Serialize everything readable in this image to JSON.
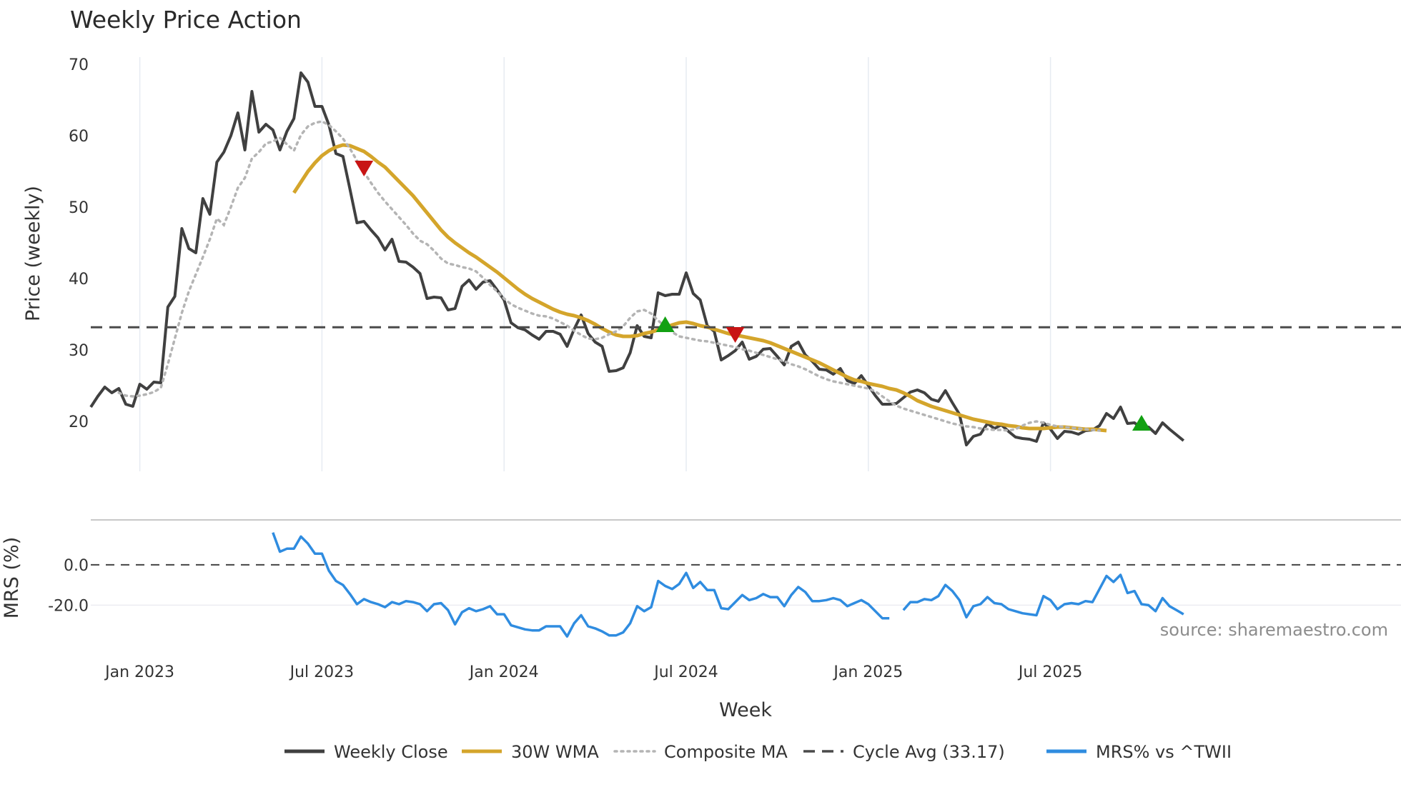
{
  "chart_data": {
    "type": "line",
    "title": "Weekly Price Action",
    "xlabel": "Week",
    "ylabel": "Price (weekly)",
    "ylabel2": "MRS (%)",
    "source": "source: sharemaestro.com",
    "x_ticks": [
      {
        "label": "Jan 2023",
        "week": 8
      },
      {
        "label": "Jul 2023",
        "week": 34
      },
      {
        "label": "Jan 2024",
        "week": 60
      },
      {
        "label": "Jul 2024",
        "week": 86
      },
      {
        "label": "Jan 2025",
        "week": 112
      },
      {
        "label": "Jul 2025",
        "week": 138
      }
    ],
    "price_ylim": [
      13,
      71
    ],
    "price_yticks": [
      "20",
      "30",
      "40",
      "50",
      "60",
      "70"
    ],
    "mrs_ylim": [
      -45,
      18
    ],
    "mrs_yticks": [
      "0.0",
      "-20.0"
    ],
    "series": [
      {
        "name": "Weekly Close",
        "color": "#404040",
        "start_week": 1,
        "values": [
          22.0,
          23.5,
          24.8,
          24.0,
          24.6,
          22.4,
          22.1,
          25.2,
          24.5,
          25.5,
          25.4,
          36.0,
          37.5,
          47.0,
          44.2,
          43.6,
          51.2,
          49.0,
          56.3,
          57.7,
          60.0,
          63.2,
          58.0,
          66.2,
          60.5,
          61.6,
          60.8,
          58.0,
          60.6,
          62.4,
          68.8,
          67.5,
          64.1,
          64.1,
          61.5,
          57.5,
          57.1,
          52.5,
          47.8,
          48.0,
          46.8,
          45.7,
          44.0,
          45.5,
          42.4,
          42.3,
          41.6,
          40.7,
          37.2,
          37.4,
          37.3,
          35.6,
          35.8,
          38.9,
          39.8,
          38.5,
          39.5,
          39.7,
          38.4,
          37.0,
          33.8,
          33.1,
          32.8,
          32.1,
          31.5,
          32.6,
          32.6,
          32.2,
          30.5,
          32.9,
          34.9,
          32.3,
          31.1,
          30.5,
          27.0,
          27.1,
          27.5,
          29.6,
          33.4,
          31.9,
          31.7,
          38.0,
          37.6,
          37.8,
          37.8,
          40.8,
          37.9,
          37.0,
          33.4,
          32.6,
          28.6,
          29.2,
          29.9,
          31.1,
          28.7,
          29.1,
          30.1,
          30.2,
          29.1,
          27.9,
          30.5,
          31.1,
          29.3,
          28.4,
          27.3,
          27.2,
          26.6,
          27.4,
          25.7,
          25.3,
          26.4,
          25.0,
          23.6,
          22.4,
          22.4,
          22.5,
          23.3,
          24.1,
          24.4,
          24.0,
          23.1,
          22.8,
          24.3,
          22.6,
          21.0,
          16.7,
          17.9,
          18.2,
          19.7,
          19.0,
          19.5,
          18.6,
          17.8,
          17.6,
          17.5,
          17.2,
          19.8,
          18.9,
          17.6,
          18.6,
          18.5,
          18.2,
          18.7,
          18.8,
          19.4,
          21.1,
          20.4,
          22.0,
          19.7,
          19.8,
          19.0,
          19.2,
          18.3,
          19.8,
          18.9,
          18.1,
          17.3
        ]
      },
      {
        "name": "30W WMA",
        "color": "#d4a52b",
        "start_week": 30,
        "values": [
          52.0,
          53.5,
          55.0,
          56.2,
          57.2,
          57.9,
          58.4,
          58.7,
          58.6,
          58.2,
          57.8,
          57.1,
          56.3,
          55.6,
          54.6,
          53.6,
          52.6,
          51.6,
          50.4,
          49.2,
          48.0,
          46.8,
          45.8,
          45.0,
          44.3,
          43.6,
          43.0,
          42.3,
          41.6,
          40.9,
          40.1,
          39.3,
          38.5,
          37.8,
          37.2,
          36.7,
          36.2,
          35.7,
          35.3,
          35.0,
          34.8,
          34.5,
          34.1,
          33.6,
          33.0,
          32.5,
          32.1,
          31.9,
          31.9,
          32.0,
          32.3,
          32.5,
          32.8,
          33.1,
          33.5,
          33.8,
          33.9,
          33.7,
          33.4,
          33.2,
          32.9,
          32.6,
          32.3,
          32.1,
          31.9,
          31.7,
          31.5,
          31.3,
          31.0,
          30.6,
          30.2,
          29.8,
          29.4,
          29.0,
          28.6,
          28.2,
          27.7,
          27.2,
          26.7,
          26.2,
          25.8,
          25.6,
          25.3,
          25.1,
          24.9,
          24.6,
          24.4,
          24.0,
          23.5,
          22.9,
          22.5,
          22.1,
          21.8,
          21.5,
          21.2,
          20.9,
          20.6,
          20.3,
          20.1,
          19.9,
          19.7,
          19.6,
          19.4,
          19.3,
          19.1,
          19.0,
          19.0,
          19.0,
          19.1,
          19.2,
          19.2,
          19.1,
          19.0,
          18.9,
          18.9,
          18.8,
          18.7
        ]
      },
      {
        "name": "Composite MA",
        "color": "#b4b4b4",
        "start_week": 5,
        "values": [
          24.0,
          23.6,
          23.5,
          23.6,
          23.8,
          24.1,
          24.7,
          28.0,
          31.6,
          35.2,
          38.2,
          40.6,
          43.0,
          45.5,
          48.4,
          47.5,
          50.0,
          52.7,
          54.1,
          56.8,
          57.7,
          58.9,
          59.2,
          59.7,
          58.8,
          57.9,
          60.1,
          61.3,
          61.8,
          62.0,
          61.5,
          60.6,
          59.6,
          58.2,
          56.5,
          54.9,
          53.4,
          52.0,
          50.8,
          49.7,
          48.6,
          47.5,
          46.3,
          45.3,
          44.8,
          43.9,
          42.8,
          42.1,
          41.9,
          41.6,
          41.4,
          41.0,
          40.1,
          39.1,
          38.2,
          37.2,
          36.4,
          35.9,
          35.5,
          35.1,
          34.8,
          34.7,
          34.4,
          33.9,
          33.4,
          32.7,
          32.1,
          31.6,
          31.5,
          31.7,
          32.2,
          32.6,
          33.3,
          34.5,
          35.4,
          35.6,
          35.1,
          34.1,
          33.3,
          32.5,
          31.9,
          31.7,
          31.5,
          31.3,
          31.2,
          31.0,
          30.8,
          30.6,
          30.4,
          30.1,
          29.9,
          29.6,
          29.3,
          29.0,
          28.7,
          28.4,
          28.0,
          27.7,
          27.3,
          26.8,
          26.3,
          25.9,
          25.6,
          25.4,
          25.2,
          25.0,
          24.8,
          24.6,
          24.2,
          23.5,
          22.8,
          22.2,
          21.8,
          21.5,
          21.2,
          20.9,
          20.6,
          20.3,
          20.0,
          19.7,
          19.5,
          19.3,
          19.2,
          19.0,
          18.9,
          18.8,
          18.8,
          18.7,
          18.9,
          19.4,
          19.8,
          20.0,
          19.8,
          19.5,
          19.3,
          19.2,
          19.1,
          19.0,
          18.9,
          18.8,
          18.7
        ]
      },
      {
        "name": "Cycle Avg (33.17)",
        "color": "#4a4a4a",
        "value": 33.17
      },
      {
        "name": "MRS% vs ^TWII",
        "color": "#2f8ce0",
        "start_week": 27,
        "segments": [
          {
            "start_week": 27,
            "values": [
              16.0,
              6.5,
              8.0,
              8.0,
              14.0,
              10.5,
              5.5,
              5.5,
              -3.0,
              -8.0,
              -10.0,
              -14.5,
              -19.5,
              -17.0,
              -18.5,
              -19.5,
              -21.0,
              -18.5,
              -19.5,
              -18.0,
              -18.5,
              -19.5,
              -23.0,
              -19.5,
              -19.0,
              -22.5,
              -29.5,
              -23.5,
              -21.5,
              -23.0,
              -22.0,
              -20.5,
              -24.5,
              -24.5,
              -30.0,
              -31.0,
              -32.0,
              -32.5,
              -32.5,
              -30.5,
              -30.5,
              -30.5,
              -35.5,
              -29.0,
              -25.0,
              -30.5,
              -31.5,
              -33.0,
              -35.0,
              -35.0,
              -33.5,
              -29.0,
              -20.5,
              -23.0,
              -21.0,
              -8.0,
              -10.5,
              -12.0,
              -9.5,
              -4.0,
              -11.5,
              -8.5,
              -12.5,
              -12.5,
              -21.5,
              -22.0,
              -18.5,
              -15.0,
              -17.5,
              -16.5,
              -14.5,
              -16.0,
              -16.0,
              -20.5,
              -15.0,
              -11.0,
              -13.5,
              -18.0,
              -18.0,
              -17.5,
              -16.5,
              -17.5,
              -20.5,
              -19.0,
              -17.5,
              -19.5,
              -23.0,
              -26.5,
              -26.5
            ]
          },
          {
            "start_week": 117,
            "values": [
              -22.5,
              -18.5,
              -18.5,
              -17.0,
              -17.5,
              -15.5,
              -10.0,
              -13.0,
              -17.5,
              -26.0,
              -20.5,
              -19.5,
              -16.0,
              -19.0,
              -19.5,
              -22.0,
              -23.0,
              -24.0,
              -24.5,
              -25.0,
              -15.5,
              -17.5,
              -22.0,
              -19.5,
              -19.0,
              -19.5,
              -18.0,
              -18.5,
              -12.0,
              -5.5,
              -8.5,
              -5.0,
              -14.0,
              -13.0,
              -19.5,
              -20.0,
              -23.0,
              -16.5,
              -20.5,
              -22.5,
              -24.5
            ]
          }
        ]
      }
    ],
    "markers": [
      {
        "type": "sell",
        "week": 40,
        "price": 55.5,
        "color": "#c81414"
      },
      {
        "type": "buy",
        "week": 83,
        "price": 33.5,
        "color": "#12a012"
      },
      {
        "type": "sell",
        "week": 93,
        "price": 32.2,
        "color": "#c81414"
      },
      {
        "type": "buy",
        "week": 151,
        "price": 19.7,
        "color": "#12a012"
      }
    ],
    "legend": [
      {
        "label": "Weekly Close",
        "style": "solid",
        "color": "#404040"
      },
      {
        "label": "30W WMA",
        "style": "solid",
        "color": "#d4a52b"
      },
      {
        "label": "Composite MA",
        "style": "dotted",
        "color": "#b4b4b4"
      },
      {
        "label": "Cycle Avg (33.17)",
        "style": "dashed",
        "color": "#4a4a4a"
      },
      {
        "label": "MRS% vs ^TWII",
        "style": "solid",
        "color": "#2f8ce0"
      }
    ],
    "legend_position": "bottom-center"
  }
}
